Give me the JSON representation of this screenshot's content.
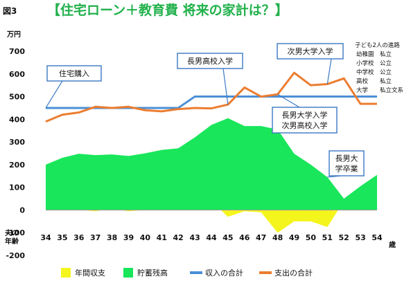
{
  "figure_label": "図3",
  "title": "【住宅ローン＋教育費 将来の家計は？】",
  "chart_data": {
    "type": "area",
    "title": "【住宅ローン＋教育費 将来の家計は？】",
    "y_unit": "万円",
    "x_unit": "歳",
    "x_prefix_label": [
      "夫の",
      "年齢"
    ],
    "categories": [
      "34",
      "35",
      "36",
      "37",
      "38",
      "39",
      "40",
      "41",
      "42",
      "43",
      "44",
      "45",
      "46",
      "47",
      "48",
      "49",
      "50",
      "51",
      "52",
      "53",
      "54"
    ],
    "y_ticks": [
      -200,
      -100,
      0,
      100,
      200,
      300,
      400,
      500,
      600,
      700
    ],
    "ylim": [
      -200,
      700
    ],
    "grid": false,
    "legend_position": "bottom",
    "series": [
      {
        "name": "年間収支",
        "type": "area",
        "color": "#f5f51e",
        "values": [
          10,
          5,
          0,
          -5,
          5,
          -5,
          0,
          10,
          5,
          25,
          40,
          -30,
          -5,
          -10,
          -100,
          -50,
          -50,
          -75,
          40,
          50,
          60
        ]
      },
      {
        "name": "貯蓄残高",
        "type": "area",
        "color": "#19e65a",
        "values": [
          200,
          230,
          248,
          242,
          245,
          238,
          250,
          265,
          272,
          320,
          375,
          405,
          370,
          370,
          355,
          248,
          200,
          145,
          50,
          105,
          155
        ]
      },
      {
        "name": "収入の合計",
        "type": "line",
        "color": "#4a8fd6",
        "values": [
          450,
          450,
          450,
          450,
          450,
          450,
          450,
          450,
          450,
          500,
          500,
          500,
          500,
          500,
          500,
          500,
          500,
          500,
          500,
          500,
          500
        ]
      },
      {
        "name": "支出の合計",
        "type": "line",
        "color": "#ec7d30",
        "values": [
          390,
          420,
          430,
          455,
          450,
          455,
          440,
          435,
          445,
          450,
          448,
          465,
          540,
          500,
          510,
          605,
          550,
          555,
          580,
          468,
          468
        ]
      }
    ],
    "annotations": [
      {
        "text": "住宅購入",
        "at": "34"
      },
      {
        "text": "長男高校入学",
        "at": "45"
      },
      {
        "text": "次男大学入学",
        "at": "51"
      },
      {
        "text": "長男大学入学\n次男高校入学",
        "at": "48"
      },
      {
        "text": "長男大\n学卒業",
        "at": "51"
      }
    ],
    "note": [
      "子ども2人の進路",
      "幼稚園　私立",
      "小学校　公立",
      "中学校　公立",
      "高校　　私立",
      "大学　　私立文系"
    ]
  }
}
